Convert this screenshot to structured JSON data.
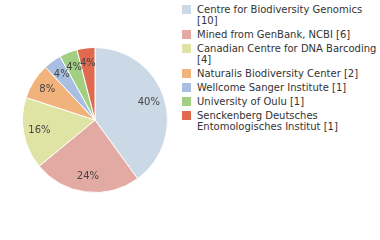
{
  "chart_data": {
    "type": "pie",
    "categories": [
      "Centre for Biodiversity Genomics [10]",
      "Mined from GenBank, NCBI [6]",
      "Canadian Centre for DNA Barcoding [4]",
      "Naturalis Biodiversity Center [2]",
      "Wellcome Sanger Institute [1]",
      "University of Oulu [1]",
      "Senckenberg Deutsches Entomologisches Institut [1]"
    ],
    "values": [
      40,
      24,
      16,
      8,
      4,
      4,
      4
    ],
    "value_labels": [
      "40%",
      "24%",
      "16%",
      "8%",
      "4%",
      "4%",
      "4%"
    ],
    "colors": [
      "#cbd8e6",
      "#e3a9a3",
      "#dfe3a3",
      "#f1b27b",
      "#a9bfe2",
      "#a3cf82",
      "#e0694f"
    ],
    "data_labels": true,
    "legend": "right"
  }
}
